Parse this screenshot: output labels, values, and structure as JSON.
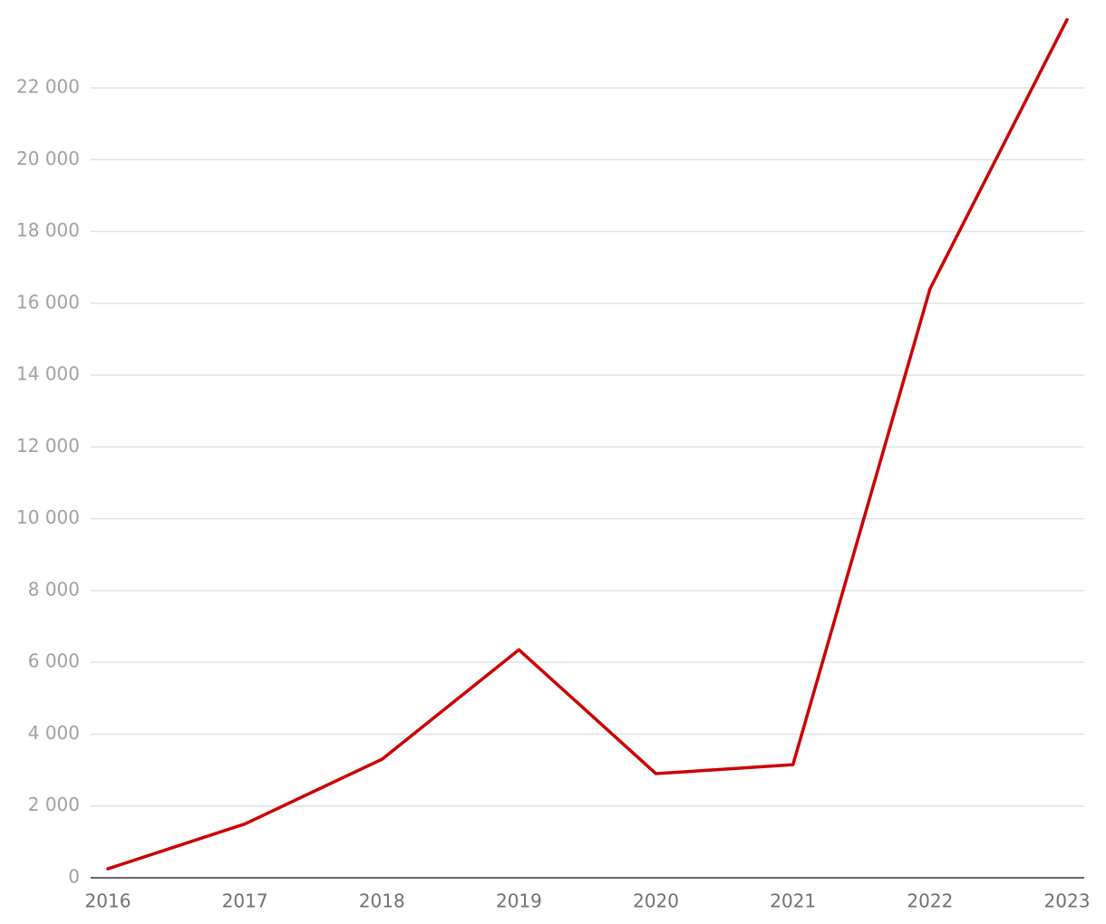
{
  "chart_data": {
    "type": "line",
    "categories": [
      "2016",
      "2017",
      "2018",
      "2019",
      "2020",
      "2021",
      "2022",
      "2023"
    ],
    "series": [
      {
        "color": "#cc0000",
        "values": [
          250,
          1500,
          3300,
          6350,
          2900,
          3150,
          16400,
          23900
        ]
      }
    ],
    "ylim": [
      0,
      24000
    ],
    "yticks": [
      0,
      {
        "value": 2000,
        "label": "2 000"
      },
      {
        "value": 4000,
        "label": "4 000"
      },
      {
        "value": 6000,
        "label": "6 000"
      },
      {
        "value": 8000,
        "label": "8 000"
      },
      {
        "value": 10000,
        "label": "10 000"
      },
      {
        "value": 12000,
        "label": "12 000"
      },
      {
        "value": 14000,
        "label": "14 000"
      },
      {
        "value": 16000,
        "label": "16 000"
      },
      {
        "value": 18000,
        "label": "18 000"
      },
      {
        "value": 20000,
        "label": "20 000"
      },
      {
        "value": 22000,
        "label": "22 000"
      }
    ],
    "grid": true
  }
}
